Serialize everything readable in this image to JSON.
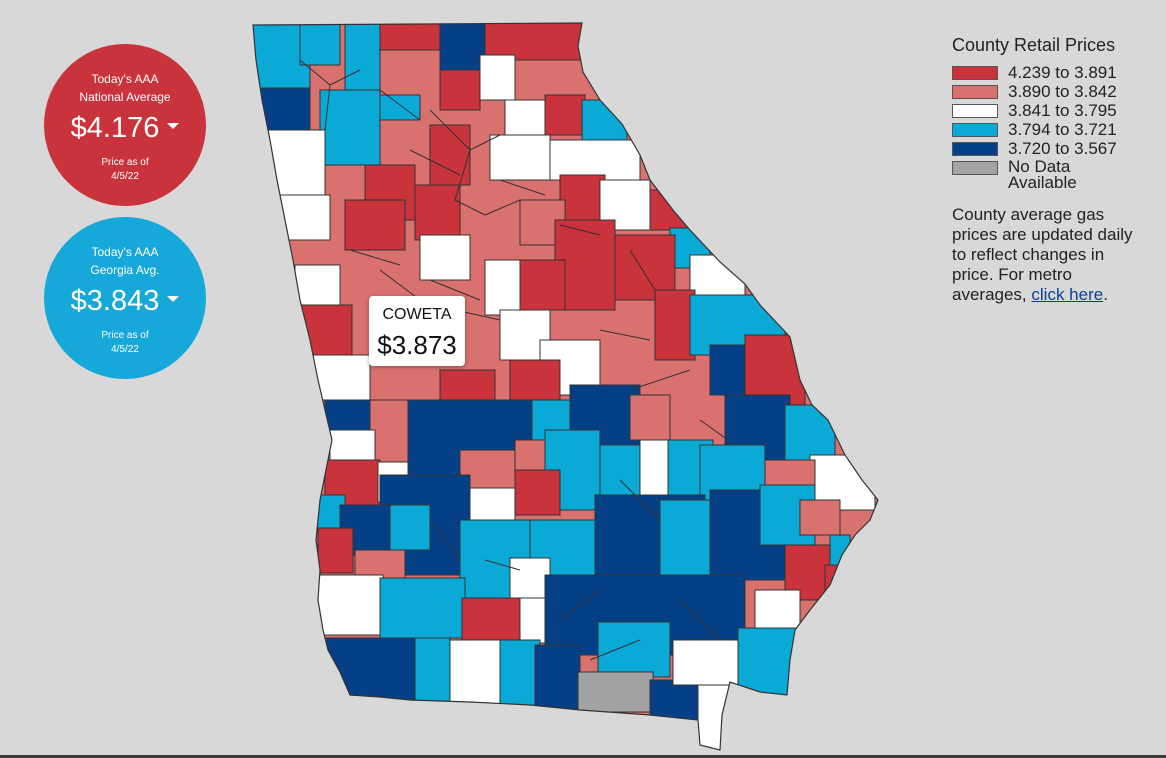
{
  "national": {
    "heading_line1": "Today's AAA",
    "heading_line2": "National Average",
    "price": "$4.176",
    "asof_line1": "Price as of",
    "asof_line2": "4/5/22",
    "color": "#c9333c"
  },
  "georgia": {
    "heading_line1": "Today's AAA",
    "heading_line2": "Georgia Avg.",
    "price": "$3.843",
    "asof_line1": "Price as of",
    "asof_line2": "4/5/22",
    "color": "#16a8d8"
  },
  "tooltip": {
    "county": "COWETA",
    "price": "$3.873"
  },
  "legend": {
    "title": "County Retail Prices",
    "items": [
      {
        "label": "4.239 to 3.891",
        "color": "#c9333c"
      },
      {
        "label": "3.890 to 3.842",
        "color": "#d9716f"
      },
      {
        "label": "3.841 to 3.795",
        "color": "#ffffff"
      },
      {
        "label": "3.794 to 3.721",
        "color": "#0aa9d6"
      },
      {
        "label": "3.720 to 3.567",
        "color": "#054087"
      },
      {
        "label": "No Data Available",
        "color": "#a3a3a3"
      }
    ],
    "note": "County average gas prices are updated daily to reflect changes in price. For metro averages, ",
    "link_text": "click here",
    "note_end": "."
  },
  "colors": {
    "background": "#d8d8d8",
    "county_border": "#333333"
  }
}
